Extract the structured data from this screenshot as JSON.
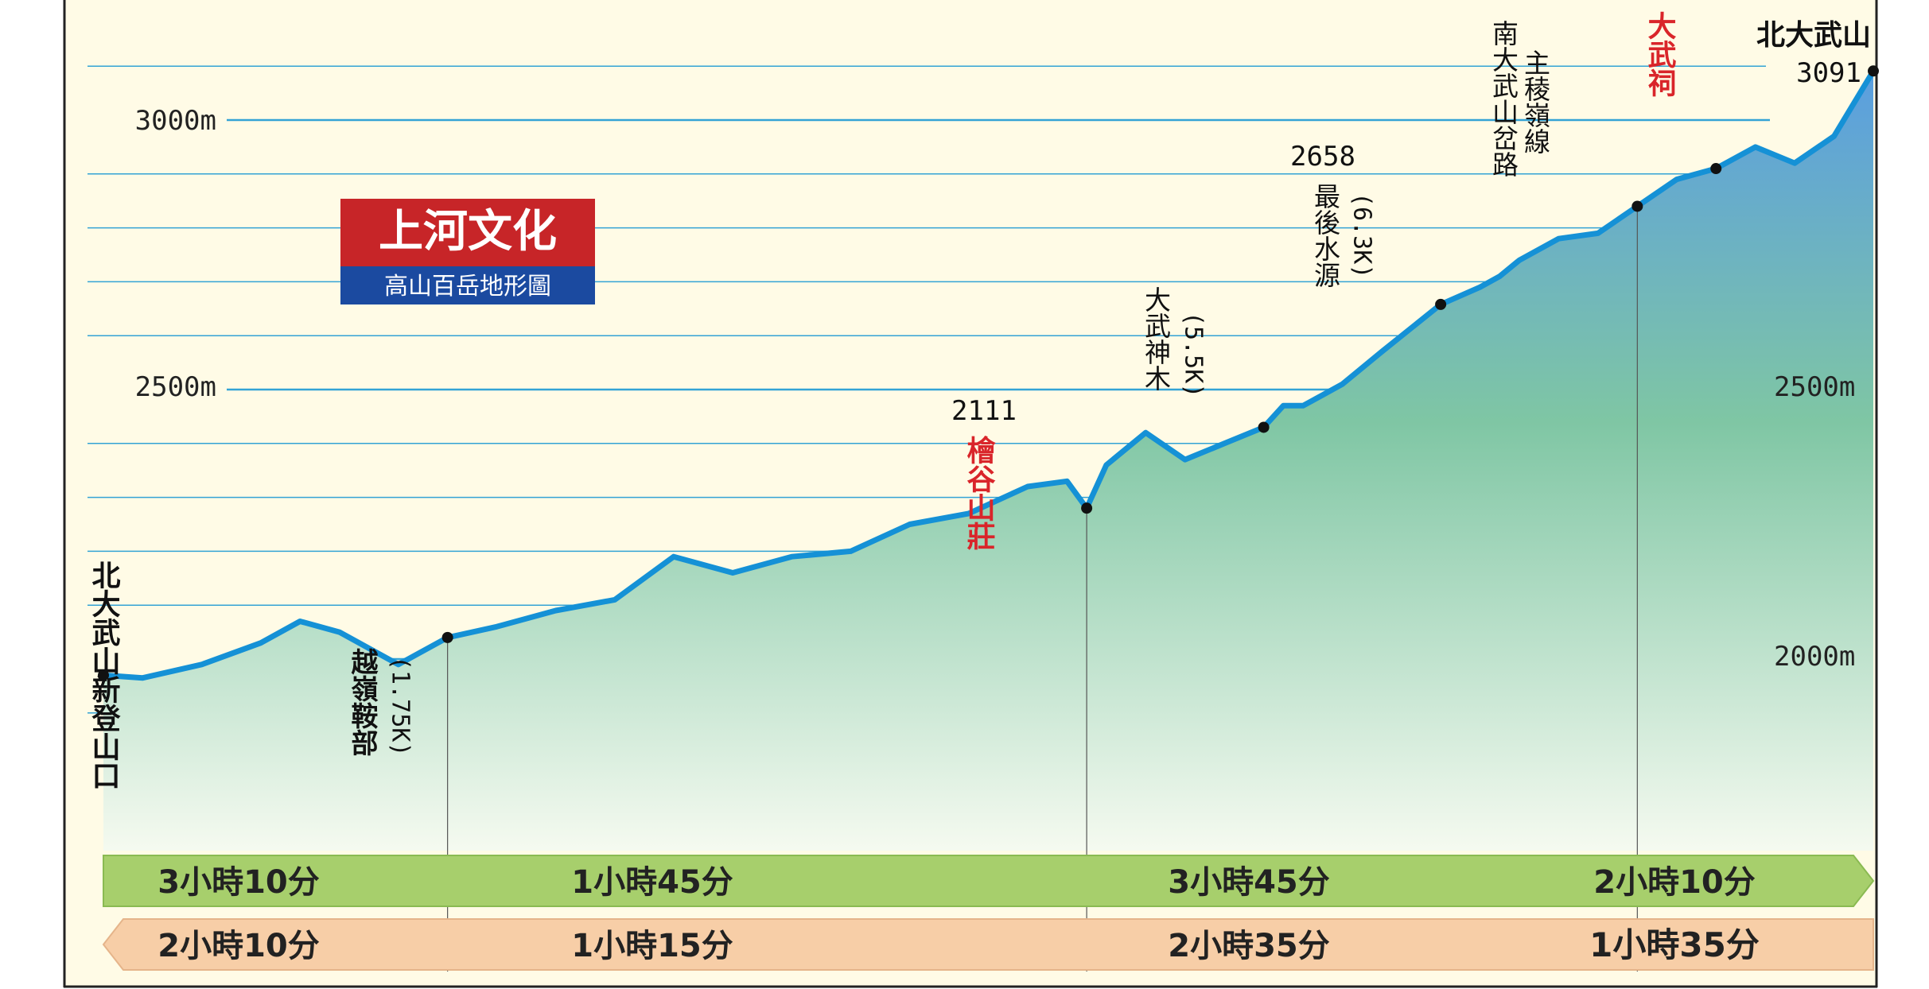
{
  "chart_data": {
    "type": "area",
    "title": "",
    "xlabel": "",
    "ylabel": "",
    "ylim": [
      1830,
      3160
    ],
    "ytick_labels": [
      "3000m",
      "2500m",
      "2000m"
    ],
    "ytick_values": [
      3000,
      2500,
      2000
    ],
    "grid": true,
    "x": [
      0,
      0.2,
      0.5,
      0.8,
      1.0,
      1.2,
      1.5,
      1.6,
      1.75,
      2.0,
      2.3,
      2.6,
      2.9,
      3.2,
      3.5,
      3.8,
      4.1,
      4.4,
      4.7,
      4.9,
      5.0,
      5.1,
      5.3,
      5.5,
      5.7,
      5.9,
      6.0,
      6.1,
      6.2,
      6.3,
      6.5,
      6.8,
      7.0,
      7.1,
      7.2,
      7.4,
      7.6,
      7.8,
      8.0,
      8.2,
      8.4,
      8.6,
      8.8,
      9.0
    ],
    "y": [
      1970,
      1965,
      1990,
      2030,
      2070,
      2050,
      1990,
      2010,
      2040,
      2060,
      2090,
      2110,
      2190,
      2160,
      2190,
      2200,
      2250,
      2270,
      2320,
      2330,
      2280,
      2360,
      2420,
      2370,
      2400,
      2430,
      2470,
      2470,
      2490,
      2510,
      2570,
      2658,
      2690,
      2710,
      2740,
      2780,
      2790,
      2840,
      2890,
      2910,
      2950,
      2920,
      2970,
      3091
    ],
    "marker_labels": [
      "北大武山新登山口",
      "越嶺鞍部",
      "(1.75K)",
      "2111",
      "檜谷山莊",
      "大武神木",
      "(5.5K)",
      "2658",
      "最後水源",
      "(6.3K)",
      "南大武山岔路",
      "主稜嶺線",
      "大武祠",
      "北大武山",
      "3091"
    ],
    "logo": {
      "title": "上河文化",
      "subtitle": "高山百岳地形圖"
    },
    "time_bars": {
      "forward": [
        "3小時10分",
        "1小時45分",
        "3小時45分",
        "2小時10分"
      ],
      "return": [
        "2小時10分",
        "1小時15分",
        "2小時35分",
        "1小時35分"
      ]
    },
    "colors": {
      "background": "#fffbe6",
      "line": "#1591d6",
      "grid": "#33a3d5",
      "area_top": "#5a9ee0",
      "area_mid": "#7fc6a4",
      "area_bottom": "#f5faf0",
      "highlight_text": "#d9252a",
      "forward_bar": "#a7cf6c",
      "return_bar": "#f7cea7",
      "logo_red": "#c72528",
      "logo_blue": "#1b4aa0"
    }
  }
}
